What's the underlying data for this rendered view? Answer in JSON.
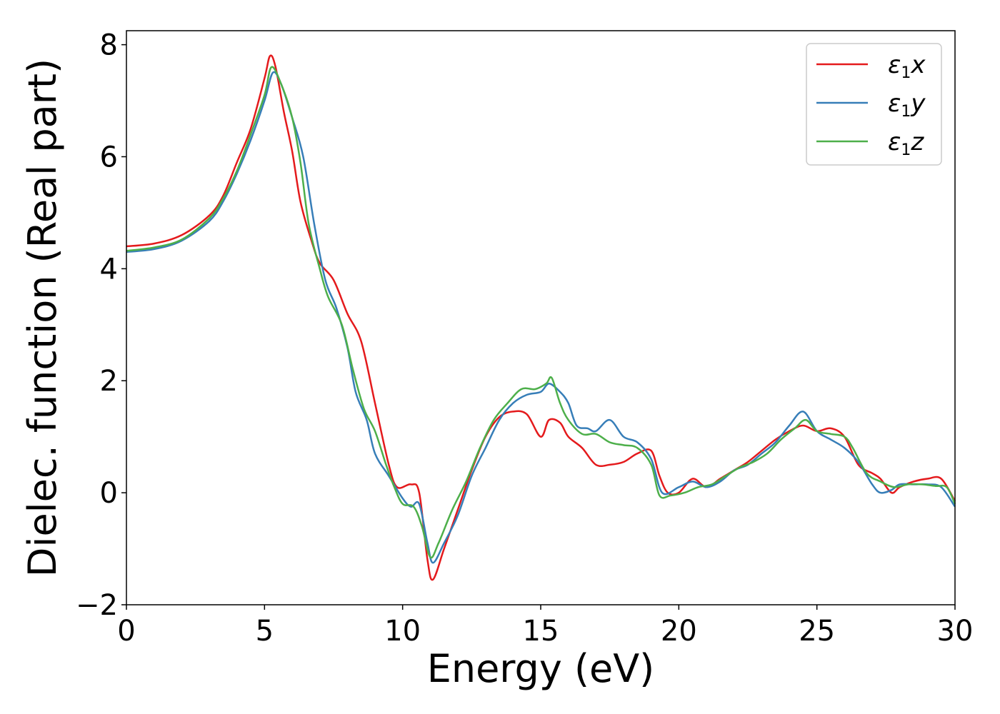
{
  "chart_data": {
    "type": "line",
    "title": "",
    "xlabel": "Energy (eV)",
    "ylabel": "Dielec. function (Real part)",
    "xlim": [
      0,
      30
    ],
    "ylim": [
      -2,
      8.25
    ],
    "xticks": [
      0,
      5,
      10,
      15,
      20,
      25,
      30
    ],
    "yticks": [
      -2,
      0,
      2,
      4,
      6,
      8
    ],
    "xtick_labels": [
      "0",
      "5",
      "10",
      "15",
      "20",
      "25",
      "30"
    ],
    "ytick_labels": [
      "−2",
      "0",
      "2",
      "4",
      "6",
      "8"
    ],
    "grid": false,
    "legend_position": "top-right",
    "series": [
      {
        "name": "ε₁x",
        "color": "#e41a1c",
        "points": [
          [
            0,
            4.4
          ],
          [
            1,
            4.45
          ],
          [
            2,
            4.6
          ],
          [
            3,
            4.95
          ],
          [
            3.5,
            5.3
          ],
          [
            4,
            5.9
          ],
          [
            4.5,
            6.5
          ],
          [
            5,
            7.4
          ],
          [
            5.2,
            7.8
          ],
          [
            5.4,
            7.6
          ],
          [
            5.7,
            6.8
          ],
          [
            6,
            6.1
          ],
          [
            6.3,
            5.2
          ],
          [
            6.7,
            4.5
          ],
          [
            7,
            4.1
          ],
          [
            7.5,
            3.8
          ],
          [
            8,
            3.2
          ],
          [
            8.5,
            2.7
          ],
          [
            9,
            1.6
          ],
          [
            9.5,
            0.5
          ],
          [
            9.8,
            0.1
          ],
          [
            10.3,
            0.15
          ],
          [
            10.6,
            0.0
          ],
          [
            10.9,
            -1.2
          ],
          [
            11.1,
            -1.55
          ],
          [
            11.5,
            -1.0
          ],
          [
            12,
            -0.3
          ],
          [
            12.5,
            0.4
          ],
          [
            13,
            1.0
          ],
          [
            13.5,
            1.35
          ],
          [
            14,
            1.45
          ],
          [
            14.5,
            1.4
          ],
          [
            15,
            1.0
          ],
          [
            15.3,
            1.3
          ],
          [
            15.7,
            1.25
          ],
          [
            16,
            1.0
          ],
          [
            16.5,
            0.8
          ],
          [
            17,
            0.5
          ],
          [
            17.5,
            0.5
          ],
          [
            18,
            0.55
          ],
          [
            18.5,
            0.7
          ],
          [
            19,
            0.75
          ],
          [
            19.3,
            0.3
          ],
          [
            19.6,
            0.0
          ],
          [
            20,
            0.0
          ],
          [
            20.5,
            0.25
          ],
          [
            21,
            0.1
          ],
          [
            21.5,
            0.25
          ],
          [
            22,
            0.4
          ],
          [
            22.5,
            0.55
          ],
          [
            23,
            0.75
          ],
          [
            23.5,
            0.95
          ],
          [
            24,
            1.1
          ],
          [
            24.5,
            1.2
          ],
          [
            25,
            1.1
          ],
          [
            25.5,
            1.15
          ],
          [
            26,
            1.0
          ],
          [
            26.5,
            0.5
          ],
          [
            27,
            0.35
          ],
          [
            27.3,
            0.25
          ],
          [
            27.7,
            0.0
          ],
          [
            28,
            0.1
          ],
          [
            28.5,
            0.2
          ],
          [
            29,
            0.25
          ],
          [
            29.5,
            0.25
          ],
          [
            30,
            -0.15
          ]
        ]
      },
      {
        "name": "ε₁y",
        "color": "#377eb8",
        "points": [
          [
            0,
            4.3
          ],
          [
            1,
            4.35
          ],
          [
            2,
            4.5
          ],
          [
            3,
            4.85
          ],
          [
            3.5,
            5.2
          ],
          [
            4,
            5.7
          ],
          [
            4.5,
            6.3
          ],
          [
            5,
            7.0
          ],
          [
            5.3,
            7.5
          ],
          [
            5.6,
            7.3
          ],
          [
            6,
            6.7
          ],
          [
            6.4,
            6.0
          ],
          [
            6.8,
            4.8
          ],
          [
            7.2,
            3.8
          ],
          [
            7.6,
            3.3
          ],
          [
            8,
            2.6
          ],
          [
            8.3,
            1.8
          ],
          [
            8.7,
            1.3
          ],
          [
            9,
            0.7
          ],
          [
            9.5,
            0.3
          ],
          [
            10,
            -0.1
          ],
          [
            10.3,
            -0.25
          ],
          [
            10.6,
            -0.2
          ],
          [
            10.9,
            -0.9
          ],
          [
            11.1,
            -1.25
          ],
          [
            11.5,
            -0.9
          ],
          [
            12,
            -0.4
          ],
          [
            12.5,
            0.3
          ],
          [
            13,
            0.8
          ],
          [
            13.5,
            1.3
          ],
          [
            14,
            1.6
          ],
          [
            14.5,
            1.75
          ],
          [
            15,
            1.8
          ],
          [
            15.3,
            1.95
          ],
          [
            15.7,
            1.8
          ],
          [
            16,
            1.6
          ],
          [
            16.3,
            1.2
          ],
          [
            16.7,
            1.15
          ],
          [
            17,
            1.1
          ],
          [
            17.5,
            1.3
          ],
          [
            18,
            1.0
          ],
          [
            18.5,
            0.9
          ],
          [
            19,
            0.6
          ],
          [
            19.4,
            0.0
          ],
          [
            20,
            0.1
          ],
          [
            20.5,
            0.2
          ],
          [
            21,
            0.1
          ],
          [
            21.5,
            0.2
          ],
          [
            22,
            0.4
          ],
          [
            22.5,
            0.5
          ],
          [
            23,
            0.7
          ],
          [
            23.5,
            0.9
          ],
          [
            24,
            1.2
          ],
          [
            24.5,
            1.45
          ],
          [
            25,
            1.1
          ],
          [
            25.5,
            0.95
          ],
          [
            26,
            0.8
          ],
          [
            26.5,
            0.55
          ],
          [
            27,
            0.15
          ],
          [
            27.3,
            0.0
          ],
          [
            27.7,
            0.05
          ],
          [
            28,
            0.15
          ],
          [
            28.5,
            0.15
          ],
          [
            29,
            0.15
          ],
          [
            29.5,
            0.1
          ],
          [
            30,
            -0.25
          ]
        ]
      },
      {
        "name": "ε₁z",
        "color": "#4daf4a",
        "points": [
          [
            0,
            4.32
          ],
          [
            1,
            4.38
          ],
          [
            2,
            4.52
          ],
          [
            3,
            4.9
          ],
          [
            3.5,
            5.25
          ],
          [
            4,
            5.75
          ],
          [
            4.5,
            6.4
          ],
          [
            5,
            7.1
          ],
          [
            5.25,
            7.6
          ],
          [
            5.6,
            7.3
          ],
          [
            6,
            6.7
          ],
          [
            6.3,
            5.9
          ],
          [
            6.6,
            4.8
          ],
          [
            7,
            4.0
          ],
          [
            7.3,
            3.5
          ],
          [
            7.8,
            3.0
          ],
          [
            8.2,
            2.2
          ],
          [
            8.6,
            1.5
          ],
          [
            9,
            1.1
          ],
          [
            9.4,
            0.5
          ],
          [
            9.7,
            0.1
          ],
          [
            10,
            -0.2
          ],
          [
            10.4,
            -0.25
          ],
          [
            10.7,
            -0.6
          ],
          [
            11,
            -1.15
          ],
          [
            11.3,
            -0.9
          ],
          [
            11.8,
            -0.3
          ],
          [
            12.3,
            0.2
          ],
          [
            12.8,
            0.8
          ],
          [
            13.3,
            1.3
          ],
          [
            13.8,
            1.6
          ],
          [
            14.3,
            1.85
          ],
          [
            14.8,
            1.85
          ],
          [
            15.2,
            1.95
          ],
          [
            15.4,
            2.05
          ],
          [
            15.7,
            1.6
          ],
          [
            16,
            1.3
          ],
          [
            16.5,
            1.05
          ],
          [
            17,
            1.05
          ],
          [
            17.5,
            0.9
          ],
          [
            18,
            0.85
          ],
          [
            18.5,
            0.8
          ],
          [
            19,
            0.5
          ],
          [
            19.3,
            -0.05
          ],
          [
            19.7,
            -0.05
          ],
          [
            20.2,
            0.0
          ],
          [
            20.7,
            0.1
          ],
          [
            21.2,
            0.15
          ],
          [
            21.7,
            0.3
          ],
          [
            22.2,
            0.45
          ],
          [
            22.7,
            0.55
          ],
          [
            23.2,
            0.7
          ],
          [
            23.7,
            0.95
          ],
          [
            24.2,
            1.15
          ],
          [
            24.6,
            1.3
          ],
          [
            25,
            1.1
          ],
          [
            25.5,
            1.05
          ],
          [
            26,
            1.0
          ],
          [
            26.3,
            0.8
          ],
          [
            26.8,
            0.35
          ],
          [
            27.3,
            0.2
          ],
          [
            27.8,
            0.1
          ],
          [
            28.3,
            0.15
          ],
          [
            28.8,
            0.15
          ],
          [
            29.3,
            0.12
          ],
          [
            29.7,
            0.1
          ],
          [
            30,
            -0.2
          ]
        ]
      }
    ]
  },
  "legend": {
    "items": [
      {
        "label_base": "ε",
        "label_sub": "1",
        "label_var": "x"
      },
      {
        "label_base": "ε",
        "label_sub": "1",
        "label_var": "y"
      },
      {
        "label_base": "ε",
        "label_sub": "1",
        "label_var": "z"
      }
    ]
  }
}
